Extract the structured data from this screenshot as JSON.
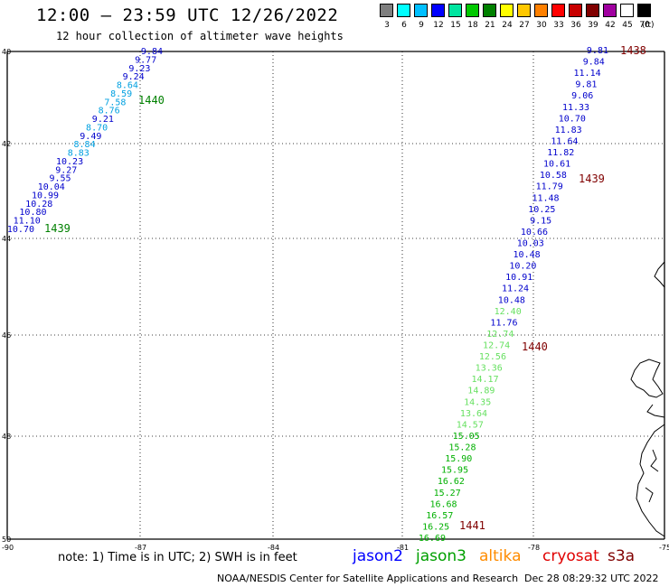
{
  "header": {
    "title": "12:00 – 23:59 UTC 12/26/2022",
    "subtitle": "12 hour collection of altimeter wave heights"
  },
  "legend": {
    "colors": [
      "#7f7f7f",
      "#00ffff",
      "#00bfff",
      "#0000ff",
      "#00e5a0",
      "#00c800",
      "#008000",
      "#ffff00",
      "#ffc800",
      "#ff8000",
      "#ff0000",
      "#c80000",
      "#800000",
      "#a000a0",
      "#ffffff",
      "#000000"
    ],
    "labels": [
      "3",
      "6",
      "9",
      "12",
      "15",
      "18",
      "21",
      "24",
      "27",
      "30",
      "33",
      "36",
      "39",
      "42",
      "45",
      "70"
    ],
    "unit": "(ft)"
  },
  "axes": {
    "lat_labels": [
      "40",
      "42",
      "44",
      "46",
      "48",
      "50"
    ],
    "lon_labels": [
      "-90",
      "-87",
      "-84",
      "-81",
      "-78",
      "-75"
    ]
  },
  "tracks": [
    {
      "satellite": "jason3",
      "time_labels": [
        {
          "text": "1440",
          "color": "#008000"
        },
        {
          "text": "1439",
          "color": "#008000"
        }
      ],
      "points": [
        {
          "v": "9.84",
          "c": "#0000cc"
        },
        {
          "v": "9.77",
          "c": "#0000cc"
        },
        {
          "v": "9.23",
          "c": "#0000cc"
        },
        {
          "v": "9.24",
          "c": "#0000cc"
        },
        {
          "v": "8.64",
          "c": "#00a0e0"
        },
        {
          "v": "8.59",
          "c": "#00a0e0"
        },
        {
          "v": "7.58",
          "c": "#00a0e0"
        },
        {
          "v": "8.76",
          "c": "#00a0e0"
        },
        {
          "v": "9.21",
          "c": "#0000cc"
        },
        {
          "v": "8.70",
          "c": "#00a0e0"
        },
        {
          "v": "9.49",
          "c": "#0000cc"
        },
        {
          "v": "8.84",
          "c": "#00a0e0"
        },
        {
          "v": "8.83",
          "c": "#00a0e0"
        },
        {
          "v": "10.23",
          "c": "#0000cc"
        },
        {
          "v": "9.27",
          "c": "#0000cc"
        },
        {
          "v": "9.55",
          "c": "#0000cc"
        },
        {
          "v": "10.04",
          "c": "#0000cc"
        },
        {
          "v": "10.99",
          "c": "#0000cc"
        },
        {
          "v": "10.28",
          "c": "#0000cc"
        },
        {
          "v": "10.80",
          "c": "#0000cc"
        },
        {
          "v": "11.10",
          "c": "#0000cc"
        },
        {
          "v": "10.70",
          "c": "#0000cc"
        }
      ]
    },
    {
      "satellite": "cryosat",
      "time_labels": [
        {
          "text": "1438",
          "color": "#800000"
        },
        {
          "text": "1439",
          "color": "#800000"
        },
        {
          "text": "1440",
          "color": "#800000"
        },
        {
          "text": "1441",
          "color": "#800000"
        }
      ],
      "points": [
        {
          "v": "9.81",
          "c": "#0000cc"
        },
        {
          "v": "9.84",
          "c": "#0000cc"
        },
        {
          "v": "11.14",
          "c": "#0000cc"
        },
        {
          "v": "9.81",
          "c": "#0000cc"
        },
        {
          "v": "9.06",
          "c": "#0000cc"
        },
        {
          "v": "11.33",
          "c": "#0000cc"
        },
        {
          "v": "10.70",
          "c": "#0000cc"
        },
        {
          "v": "11.83",
          "c": "#0000cc"
        },
        {
          "v": "11.64",
          "c": "#0000cc"
        },
        {
          "v": "11.82",
          "c": "#0000cc"
        },
        {
          "v": "10.61",
          "c": "#0000cc"
        },
        {
          "v": "10.58",
          "c": "#0000cc"
        },
        {
          "v": "11.79",
          "c": "#0000cc"
        },
        {
          "v": "11.48",
          "c": "#0000cc"
        },
        {
          "v": "10.25",
          "c": "#0000cc"
        },
        {
          "v": "9.15",
          "c": "#0000cc"
        },
        {
          "v": "10.66",
          "c": "#0000cc"
        },
        {
          "v": "10.03",
          "c": "#0000cc"
        },
        {
          "v": "10.48",
          "c": "#0000cc"
        },
        {
          "v": "10.20",
          "c": "#0000cc"
        },
        {
          "v": "10.91",
          "c": "#0000cc"
        },
        {
          "v": "11.24",
          "c": "#0000cc"
        },
        {
          "v": "10.48",
          "c": "#0000cc"
        },
        {
          "v": "12.40",
          "c": "#66e060"
        },
        {
          "v": "11.76",
          "c": "#0000cc"
        },
        {
          "v": "12.74",
          "c": "#66e060"
        },
        {
          "v": "12.74",
          "c": "#66e060"
        },
        {
          "v": "12.56",
          "c": "#66e060"
        },
        {
          "v": "13.36",
          "c": "#66e060"
        },
        {
          "v": "14.17",
          "c": "#66e060"
        },
        {
          "v": "14.89",
          "c": "#66e060"
        },
        {
          "v": "14.35",
          "c": "#66e060"
        },
        {
          "v": "13.64",
          "c": "#66e060"
        },
        {
          "v": "14.57",
          "c": "#66e060"
        },
        {
          "v": "15.05",
          "c": "#00b000"
        },
        {
          "v": "15.28",
          "c": "#00b000"
        },
        {
          "v": "15.90",
          "c": "#00b000"
        },
        {
          "v": "15.95",
          "c": "#00b000"
        },
        {
          "v": "16.62",
          "c": "#00b000"
        },
        {
          "v": "15.27",
          "c": "#00b000"
        },
        {
          "v": "16.68",
          "c": "#00b000"
        },
        {
          "v": "16.57",
          "c": "#00b000"
        },
        {
          "v": "16.25",
          "c": "#00b000"
        },
        {
          "v": "16.69",
          "c": "#00b000"
        }
      ]
    }
  ],
  "footer": {
    "note": "note:  1) Time is in UTC; 2) SWH is in feet",
    "satellites": [
      {
        "name": "jason2",
        "color": "#0000ff"
      },
      {
        "name": "jason3",
        "color": "#00a000"
      },
      {
        "name": "altika",
        "color": "#ff8c00"
      },
      {
        "name": "cryosat",
        "color": "#e00000"
      },
      {
        "name": "s3a",
        "color": "#800000"
      }
    ],
    "credit": "NOAA/NESDIS Center for Satellite Applications and Research",
    "datestamp": "Dec 28 08:29:32 UTC 2022"
  }
}
